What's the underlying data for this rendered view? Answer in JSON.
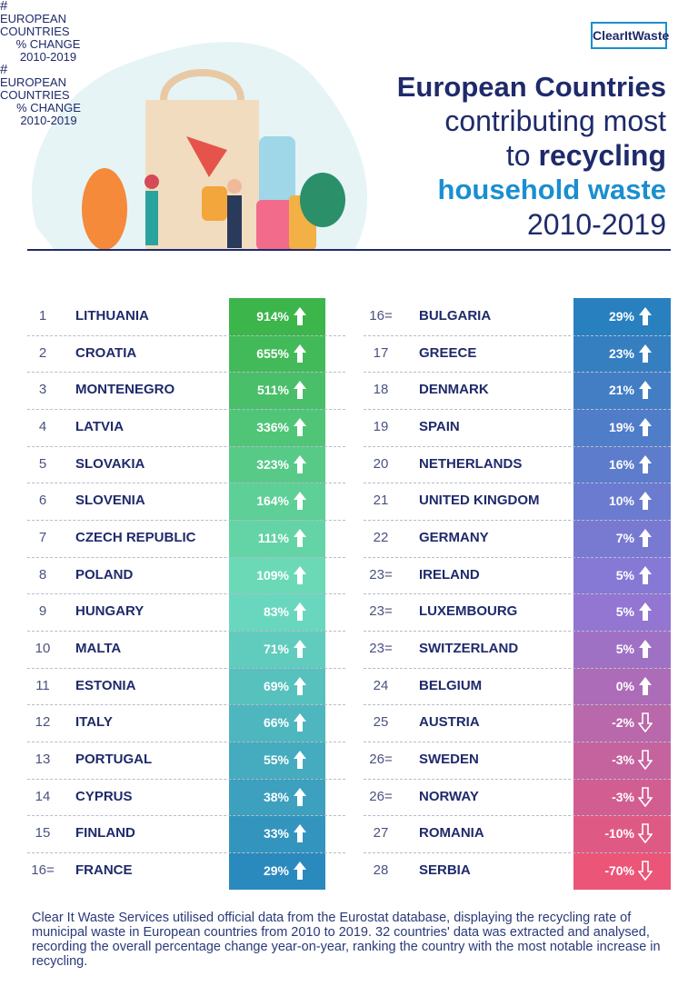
{
  "header": {
    "logo": "ClearItWaste",
    "title": {
      "line1": "European Countries",
      "line2": "contributing most",
      "line3a": "to",
      "line3b": "recycling",
      "line4": "household waste",
      "line5": "2010-2019"
    }
  },
  "table": {
    "left": {
      "header": {
        "rank": "#",
        "country": "EUROPEAN COUNTRIES",
        "change": "% CHANGE 2010-2019"
      },
      "rows": [
        {
          "rank": "1",
          "country": "LITHUANIA",
          "change": "914%"
        },
        {
          "rank": "2",
          "country": "CROATIA",
          "change": "655%"
        },
        {
          "rank": "3",
          "country": "MONTENEGRO",
          "change": "511%"
        },
        {
          "rank": "4",
          "country": "LATVIA",
          "change": "336%"
        },
        {
          "rank": "5",
          "country": "SLOVAKIA",
          "change": "323%"
        },
        {
          "rank": "6",
          "country": "SLOVENIA",
          "change": "164%"
        },
        {
          "rank": "7",
          "country": "CZECH REPUBLIC",
          "change": "111%"
        },
        {
          "rank": "8",
          "country": "POLAND",
          "change": "109%"
        },
        {
          "rank": "9",
          "country": "HUNGARY",
          "change": "83%"
        },
        {
          "rank": "10",
          "country": "MALTA",
          "change": "71%"
        },
        {
          "rank": "11",
          "country": "ESTONIA",
          "change": "69%"
        },
        {
          "rank": "12",
          "country": "ITALY",
          "change": "66%"
        },
        {
          "rank": "13",
          "country": "PORTUGAL",
          "change": "55%"
        },
        {
          "rank": "14",
          "country": "CYPRUS",
          "change": "38%"
        },
        {
          "rank": "15",
          "country": "FINLAND",
          "change": "33%"
        },
        {
          "rank": "16=",
          "country": "FRANCE",
          "change": "29%"
        }
      ]
    },
    "right": {
      "header": {
        "rank": "#",
        "country": "EUROPEAN COUNTRIES",
        "change": "% CHANGE 2010-2019"
      },
      "rows": [
        {
          "rank": "16=",
          "country": "BULGARIA",
          "change": "29%"
        },
        {
          "rank": "17",
          "country": "GREECE",
          "change": "23%"
        },
        {
          "rank": "18",
          "country": "DENMARK",
          "change": "21%"
        },
        {
          "rank": "19",
          "country": "SPAIN",
          "change": "19%"
        },
        {
          "rank": "20",
          "country": "NETHERLANDS",
          "change": "16%"
        },
        {
          "rank": "21",
          "country": "UNITED KINGDOM",
          "change": "10%"
        },
        {
          "rank": "22",
          "country": "GERMANY",
          "change": "7%"
        },
        {
          "rank": "23=",
          "country": "IRELAND",
          "change": "5%"
        },
        {
          "rank": "23=",
          "country": "LUXEMBOURG",
          "change": "5%"
        },
        {
          "rank": "23=",
          "country": "SWITZERLAND",
          "change": "5%"
        },
        {
          "rank": "24",
          "country": "BELGIUM",
          "change": "0%"
        },
        {
          "rank": "25",
          "country": "AUSTRIA",
          "change": "-2%"
        },
        {
          "rank": "26=",
          "country": "SWEDEN",
          "change": "-3%"
        },
        {
          "rank": "26=",
          "country": "NORWAY",
          "change": "-3%"
        },
        {
          "rank": "27",
          "country": "ROMANIA",
          "change": "-10%"
        },
        {
          "rank": "28",
          "country": "SERBIA",
          "change": "-70%"
        }
      ]
    }
  },
  "footer": {
    "text": "Clear It Waste Services utilised official data from the Eurostat database, displaying the recycling rate of municipal waste in European countries from 2010 to 2019. 32 countries' data was extracted and analysed, recording the overall percentage change year-on-year, ranking the country with the most notable increase in recycling."
  }
}
